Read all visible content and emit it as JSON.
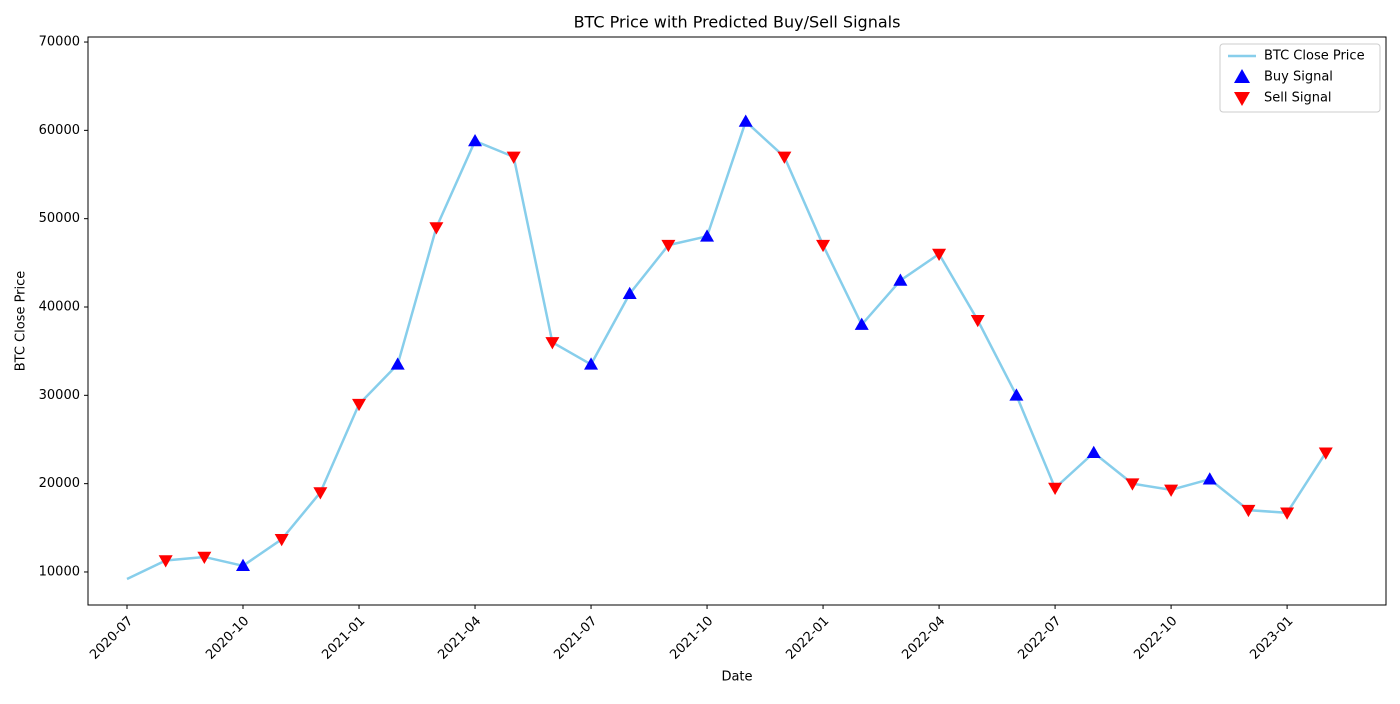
{
  "chart_data": {
    "type": "line",
    "title": "BTC Price with Predicted Buy/Sell Signals",
    "x_label": "Date",
    "y_label": "BTC Close Price",
    "x": [
      "2020-07",
      "2020-08",
      "2020-09",
      "2020-10",
      "2020-11",
      "2020-12",
      "2021-01",
      "2021-02",
      "2021-03",
      "2021-04",
      "2021-05",
      "2021-06",
      "2021-07",
      "2021-08",
      "2021-09",
      "2021-10",
      "2021-11",
      "2021-12",
      "2022-01",
      "2022-02",
      "2022-03",
      "2022-04",
      "2022-05",
      "2022-06",
      "2022-07",
      "2022-08",
      "2022-09",
      "2022-10",
      "2022-11",
      "2022-12",
      "2023-01",
      "2023-02"
    ],
    "series": [
      {
        "name": "BTC Close Price",
        "type": "line",
        "color": "#87ceeb",
        "values": [
          9200,
          11300,
          11700,
          10700,
          13700,
          19000,
          29000,
          33500,
          49000,
          58800,
          57000,
          36000,
          33500,
          41500,
          47000,
          48000,
          61000,
          57000,
          47000,
          38000,
          43000,
          46000,
          38500,
          30000,
          19500,
          23500,
          20000,
          19300,
          20500,
          17000,
          16700,
          23500
        ]
      },
      {
        "name": "Buy Signal",
        "type": "scatter",
        "marker": "up",
        "color": "#0000ff",
        "values": [
          null,
          null,
          null,
          10700,
          null,
          null,
          null,
          33500,
          null,
          58800,
          null,
          null,
          33500,
          41500,
          null,
          48000,
          61000,
          null,
          null,
          38000,
          43000,
          null,
          null,
          30000,
          null,
          23500,
          null,
          null,
          20500,
          null,
          null,
          null
        ]
      },
      {
        "name": "Sell Signal",
        "type": "scatter",
        "marker": "down",
        "color": "#ff0000",
        "values": [
          null,
          11300,
          11700,
          null,
          13700,
          19000,
          29000,
          null,
          49000,
          null,
          57000,
          36000,
          null,
          null,
          47000,
          null,
          null,
          57000,
          47000,
          null,
          null,
          46000,
          38500,
          null,
          19500,
          null,
          20000,
          19300,
          null,
          17000,
          16700,
          23500
        ]
      }
    ],
    "xticks": [
      "2020-07",
      "2020-10",
      "2021-01",
      "2021-04",
      "2021-07",
      "2021-10",
      "2022-01",
      "2022-04",
      "2022-07",
      "2022-10",
      "2023-01"
    ],
    "ylim": [
      6260,
      70570
    ],
    "yticks": [
      10000,
      20000,
      30000,
      40000,
      50000,
      60000,
      70000
    ],
    "legend": "upper right"
  }
}
